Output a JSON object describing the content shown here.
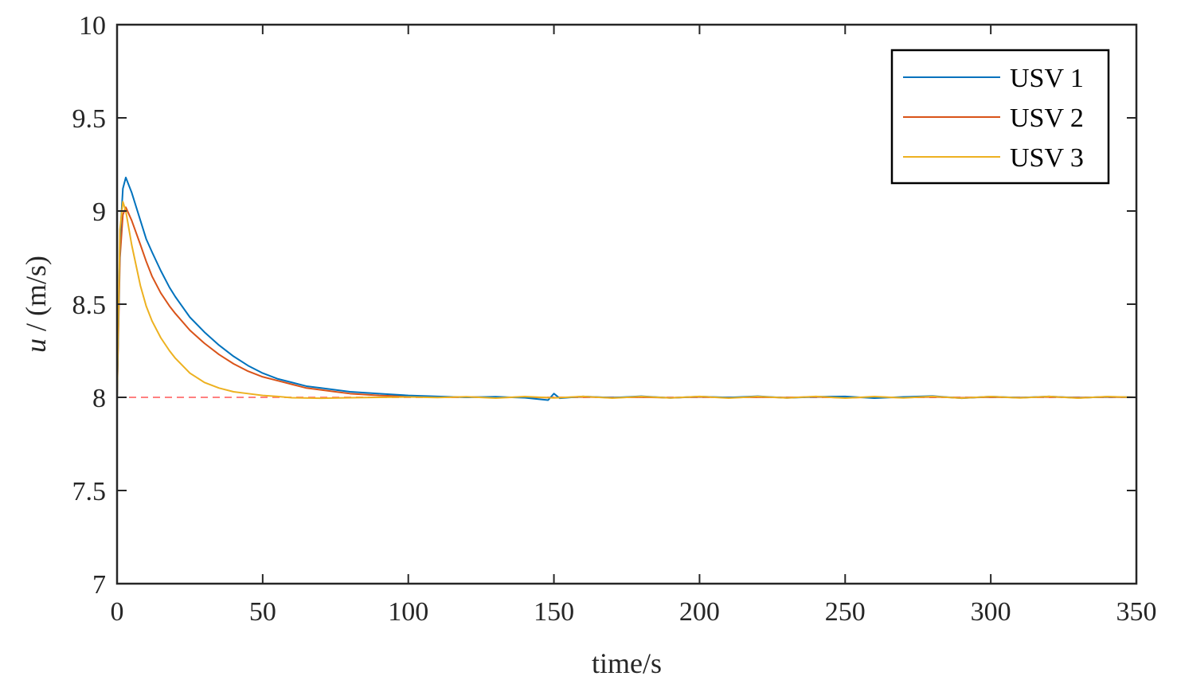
{
  "chart_data": {
    "type": "line",
    "title": "",
    "xlabel": "time/s",
    "ylabel_var": "u",
    "ylabel_unit": " / (m/s)",
    "xlim": [
      0,
      350
    ],
    "ylim": [
      7,
      10
    ],
    "xticks": [
      0,
      50,
      100,
      150,
      200,
      250,
      300,
      350
    ],
    "yticks": [
      7,
      7.5,
      8,
      8.5,
      9,
      9.5,
      10
    ],
    "grid": false,
    "legend_position": "top-right",
    "reference": {
      "y": 8,
      "color": "#ff8080",
      "style": "dashed"
    },
    "series": [
      {
        "name": "USV 1",
        "color": "#0072bd",
        "x": [
          0,
          1,
          2,
          3,
          5,
          8,
          10,
          12,
          15,
          18,
          20,
          25,
          30,
          35,
          40,
          45,
          50,
          55,
          60,
          65,
          70,
          75,
          80,
          90,
          100,
          110,
          120,
          130,
          140,
          148,
          150,
          152,
          160,
          170,
          180,
          190,
          200,
          210,
          220,
          230,
          240,
          250,
          260,
          270,
          280,
          290,
          300,
          310,
          320,
          330,
          340,
          350
        ],
        "y": [
          8.0,
          8.85,
          9.12,
          9.18,
          9.1,
          8.95,
          8.85,
          8.78,
          8.68,
          8.59,
          8.54,
          8.43,
          8.35,
          8.28,
          8.22,
          8.17,
          8.13,
          8.1,
          8.08,
          8.06,
          8.05,
          8.04,
          8.03,
          8.02,
          8.01,
          8.005,
          8.0,
          8.003,
          7.998,
          7.985,
          8.02,
          7.995,
          8.005,
          7.998,
          8.006,
          7.997,
          8.004,
          7.999,
          8.006,
          7.997,
          8.003,
          8.005,
          7.996,
          8.002,
          8.007,
          7.995,
          8.004,
          7.998,
          8.005,
          7.997,
          8.003,
          8.0
        ]
      },
      {
        "name": "USV 2",
        "color": "#d95319",
        "x": [
          0,
          1,
          2,
          3,
          5,
          8,
          10,
          12,
          15,
          18,
          20,
          25,
          30,
          35,
          40,
          45,
          50,
          55,
          60,
          65,
          70,
          75,
          80,
          90,
          100,
          110,
          120,
          130,
          140,
          150,
          160,
          170,
          180,
          190,
          200,
          210,
          220,
          230,
          240,
          250,
          260,
          270,
          280,
          290,
          300,
          310,
          320,
          330,
          340,
          350
        ],
        "y": [
          8.0,
          8.75,
          8.98,
          9.02,
          8.95,
          8.82,
          8.73,
          8.65,
          8.56,
          8.49,
          8.45,
          8.36,
          8.29,
          8.23,
          8.18,
          8.14,
          8.11,
          8.09,
          8.07,
          8.05,
          8.04,
          8.03,
          8.02,
          8.01,
          8.005,
          8.0,
          8.002,
          7.999,
          8.001,
          7.998,
          8.002,
          7.999,
          8.001,
          7.998,
          8.002,
          7.999,
          8.001,
          7.999,
          8.002,
          7.998,
          8.001,
          7.999,
          8.002,
          7.998,
          8.001,
          7.999,
          8.002,
          7.999,
          8.001,
          8.0
        ]
      },
      {
        "name": "USV 3",
        "color": "#edb120",
        "x": [
          0,
          1,
          2,
          3,
          5,
          8,
          10,
          12,
          15,
          18,
          20,
          25,
          30,
          35,
          40,
          45,
          50,
          55,
          60,
          70,
          80,
          90,
          100,
          110,
          120,
          130,
          140,
          150,
          160,
          170,
          180,
          190,
          200,
          210,
          220,
          230,
          240,
          250,
          260,
          270,
          280,
          290,
          300,
          310,
          320,
          330,
          340,
          350
        ],
        "y": [
          8.0,
          8.9,
          9.05,
          9.0,
          8.82,
          8.6,
          8.49,
          8.41,
          8.32,
          8.25,
          8.21,
          8.13,
          8.08,
          8.05,
          8.03,
          8.02,
          8.01,
          8.005,
          7.998,
          7.995,
          7.998,
          8.0,
          8.002,
          7.999,
          8.003,
          7.996,
          8.004,
          7.997,
          8.005,
          7.996,
          8.004,
          7.997,
          8.005,
          7.996,
          8.004,
          7.997,
          8.005,
          7.996,
          8.004,
          7.997,
          8.005,
          7.996,
          8.004,
          7.997,
          8.005,
          7.996,
          8.004,
          8.0
        ]
      }
    ]
  }
}
